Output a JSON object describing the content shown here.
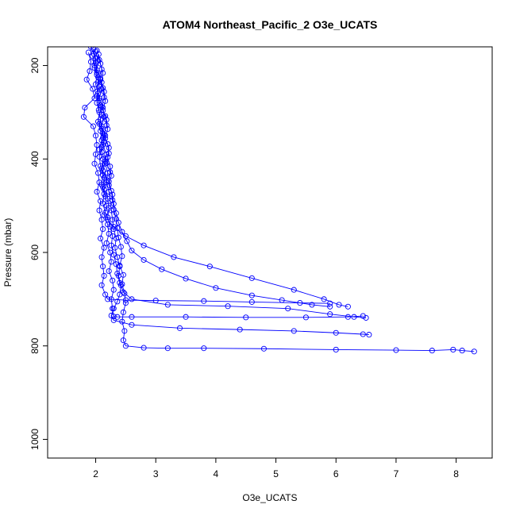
{
  "chart_data": {
    "type": "line",
    "title": "ATOM4 Northeast_Pacific_2 O3e_UCATS",
    "xlabel": "O3e_UCATS",
    "ylabel": "Pressure (mbar)",
    "xlim": [
      1.2,
      8.6
    ],
    "ylim": [
      160,
      1040
    ],
    "y_reversed": true,
    "x_ticks": [
      2,
      3,
      4,
      5,
      6,
      7,
      8
    ],
    "y_ticks": [
      200,
      400,
      600,
      800,
      1000
    ],
    "grid": false,
    "legend": "none",
    "series_color": "#0000ff",
    "series": [
      {
        "values": [
          [
            1.92,
            160
          ],
          [
            1.97,
            175
          ],
          [
            2.0,
            195
          ],
          [
            2.02,
            215
          ],
          [
            2.04,
            235
          ],
          [
            2.03,
            255
          ],
          [
            2.06,
            275
          ],
          [
            2.05,
            295
          ],
          [
            2.08,
            315
          ],
          [
            2.1,
            335
          ],
          [
            2.12,
            355
          ],
          [
            2.1,
            375
          ],
          [
            2.06,
            395
          ],
          [
            2.08,
            415
          ],
          [
            2.12,
            435
          ],
          [
            2.1,
            455
          ],
          [
            2.14,
            475
          ],
          [
            2.12,
            495
          ],
          [
            2.16,
            515
          ],
          [
            2.2,
            530
          ],
          [
            2.3,
            545
          ],
          [
            2.5,
            565
          ],
          [
            2.8,
            585
          ],
          [
            3.3,
            610
          ],
          [
            3.9,
            630
          ],
          [
            4.6,
            655
          ],
          [
            5.3,
            680
          ],
          [
            5.8,
            700
          ],
          [
            6.05,
            712
          ],
          [
            6.2,
            716
          ]
        ]
      },
      {
        "values": [
          [
            1.96,
            165
          ],
          [
            2.0,
            185
          ],
          [
            1.98,
            205
          ],
          [
            2.04,
            225
          ],
          [
            2.06,
            245
          ],
          [
            2.02,
            265
          ],
          [
            2.08,
            285
          ],
          [
            2.1,
            305
          ],
          [
            2.06,
            325
          ],
          [
            2.12,
            345
          ],
          [
            2.14,
            365
          ],
          [
            2.1,
            385
          ],
          [
            2.16,
            405
          ],
          [
            2.12,
            425
          ],
          [
            2.18,
            445
          ],
          [
            2.14,
            465
          ],
          [
            2.2,
            485
          ],
          [
            2.22,
            505
          ],
          [
            2.2,
            525
          ],
          [
            2.24,
            545
          ],
          [
            2.28,
            565
          ],
          [
            2.26,
            585
          ],
          [
            2.3,
            605
          ],
          [
            2.34,
            625
          ],
          [
            2.36,
            645
          ],
          [
            2.4,
            665
          ],
          [
            2.46,
            685
          ],
          [
            2.6,
            700
          ],
          [
            3.2,
            712
          ],
          [
            4.2,
            715
          ],
          [
            5.2,
            720
          ],
          [
            5.9,
            732
          ],
          [
            6.3,
            738
          ],
          [
            6.5,
            740
          ]
        ]
      },
      {
        "values": [
          [
            2.0,
            170
          ],
          [
            2.04,
            190
          ],
          [
            2.02,
            210
          ],
          [
            2.08,
            230
          ],
          [
            2.1,
            250
          ],
          [
            2.06,
            270
          ],
          [
            2.12,
            290
          ],
          [
            2.14,
            310
          ],
          [
            2.1,
            330
          ],
          [
            2.16,
            350
          ],
          [
            2.12,
            370
          ],
          [
            2.18,
            390
          ],
          [
            2.16,
            410
          ],
          [
            2.2,
            430
          ],
          [
            2.18,
            450
          ],
          [
            2.22,
            470
          ],
          [
            2.24,
            490
          ],
          [
            2.26,
            510
          ],
          [
            2.28,
            530
          ],
          [
            2.3,
            550
          ],
          [
            2.34,
            570
          ],
          [
            2.32,
            590
          ],
          [
            2.36,
            610
          ],
          [
            2.4,
            630
          ],
          [
            2.38,
            650
          ],
          [
            2.42,
            670
          ],
          [
            2.4,
            690
          ],
          [
            2.36,
            705
          ],
          [
            2.3,
            720
          ],
          [
            2.26,
            735
          ],
          [
            2.3,
            745
          ],
          [
            2.6,
            755
          ],
          [
            3.4,
            762
          ],
          [
            4.4,
            765
          ],
          [
            5.3,
            768
          ],
          [
            6.0,
            772
          ],
          [
            6.45,
            775
          ],
          [
            6.55,
            776
          ]
        ]
      },
      {
        "values": [
          [
            2.02,
            168
          ],
          [
            2.06,
            188
          ],
          [
            2.1,
            208
          ],
          [
            2.08,
            228
          ],
          [
            2.12,
            248
          ],
          [
            2.14,
            268
          ],
          [
            2.1,
            288
          ],
          [
            2.16,
            308
          ],
          [
            2.18,
            328
          ],
          [
            2.14,
            348
          ],
          [
            2.2,
            368
          ],
          [
            2.22,
            388
          ],
          [
            2.18,
            408
          ],
          [
            2.24,
            428
          ],
          [
            2.22,
            448
          ],
          [
            2.26,
            468
          ],
          [
            2.28,
            488
          ],
          [
            2.3,
            508
          ],
          [
            2.34,
            528
          ],
          [
            2.36,
            548
          ],
          [
            2.38,
            568
          ],
          [
            2.42,
            588
          ],
          [
            2.44,
            608
          ],
          [
            2.4,
            628
          ],
          [
            2.46,
            648
          ],
          [
            2.44,
            668
          ],
          [
            2.48,
            688
          ],
          [
            2.5,
            708
          ],
          [
            2.46,
            728
          ],
          [
            2.44,
            748
          ],
          [
            2.48,
            768
          ],
          [
            2.46,
            788
          ],
          [
            2.5,
            800
          ],
          [
            2.8,
            804
          ],
          [
            3.2,
            805
          ],
          [
            3.8,
            805
          ],
          [
            4.8,
            806
          ],
          [
            6.0,
            808
          ],
          [
            7.0,
            809
          ],
          [
            7.6,
            810
          ],
          [
            7.95,
            808
          ],
          [
            8.1,
            810
          ],
          [
            8.3,
            812
          ]
        ]
      },
      {
        "values": [
          [
            1.88,
            172
          ],
          [
            1.92,
            192
          ],
          [
            1.9,
            212
          ],
          [
            1.85,
            230
          ],
          [
            1.95,
            250
          ],
          [
            1.98,
            270
          ],
          [
            1.82,
            290
          ],
          [
            1.8,
            310
          ],
          [
            1.96,
            330
          ],
          [
            2.0,
            350
          ],
          [
            2.02,
            370
          ],
          [
            2.0,
            390
          ],
          [
            1.98,
            410
          ],
          [
            2.04,
            430
          ],
          [
            2.06,
            450
          ],
          [
            2.02,
            470
          ],
          [
            2.08,
            490
          ],
          [
            2.06,
            510
          ],
          [
            2.1,
            530
          ],
          [
            2.12,
            550
          ],
          [
            2.08,
            570
          ],
          [
            2.14,
            590
          ],
          [
            2.1,
            610
          ],
          [
            2.12,
            630
          ],
          [
            2.14,
            650
          ],
          [
            2.1,
            670
          ],
          [
            2.16,
            690
          ],
          [
            2.2,
            700
          ],
          [
            2.5,
            702
          ],
          [
            3.0,
            703
          ],
          [
            3.8,
            704
          ],
          [
            4.6,
            706
          ],
          [
            5.4,
            708
          ],
          [
            5.9,
            709
          ]
        ]
      },
      {
        "values": [
          [
            2.05,
            176
          ],
          [
            2.08,
            196
          ],
          [
            2.12,
            216
          ],
          [
            2.1,
            236
          ],
          [
            2.14,
            256
          ],
          [
            2.16,
            276
          ],
          [
            2.12,
            296
          ],
          [
            2.18,
            316
          ],
          [
            2.2,
            336
          ],
          [
            2.16,
            356
          ],
          [
            2.22,
            376
          ],
          [
            2.2,
            396
          ],
          [
            2.24,
            416
          ],
          [
            2.26,
            436
          ],
          [
            2.22,
            456
          ],
          [
            2.28,
            476
          ],
          [
            2.3,
            496
          ],
          [
            2.34,
            516
          ],
          [
            2.38,
            536
          ],
          [
            2.44,
            556
          ],
          [
            2.52,
            576
          ],
          [
            2.6,
            596
          ],
          [
            2.8,
            616
          ],
          [
            3.1,
            636
          ],
          [
            3.5,
            656
          ],
          [
            4.0,
            676
          ],
          [
            4.6,
            692
          ],
          [
            5.1,
            702
          ],
          [
            5.6,
            712
          ],
          [
            5.9,
            716
          ]
        ]
      },
      {
        "values": [
          [
            1.95,
            180
          ],
          [
            1.98,
            200
          ],
          [
            2.02,
            220
          ],
          [
            2.0,
            240
          ],
          [
            2.04,
            260
          ],
          [
            2.02,
            280
          ],
          [
            2.06,
            300
          ],
          [
            2.04,
            320
          ],
          [
            2.08,
            340
          ],
          [
            2.1,
            360
          ],
          [
            2.06,
            380
          ],
          [
            2.12,
            400
          ],
          [
            2.1,
            420
          ],
          [
            2.14,
            440
          ],
          [
            2.12,
            460
          ],
          [
            2.16,
            480
          ],
          [
            2.18,
            500
          ],
          [
            2.14,
            520
          ],
          [
            2.2,
            540
          ],
          [
            2.22,
            560
          ],
          [
            2.18,
            580
          ],
          [
            2.24,
            600
          ],
          [
            2.26,
            620
          ],
          [
            2.22,
            640
          ],
          [
            2.28,
            660
          ],
          [
            2.3,
            680
          ],
          [
            2.26,
            700
          ],
          [
            2.28,
            720
          ],
          [
            2.3,
            737
          ],
          [
            2.36,
            738
          ],
          [
            2.6,
            738
          ],
          [
            3.5,
            738
          ],
          [
            4.5,
            739
          ],
          [
            5.5,
            739
          ],
          [
            6.2,
            738
          ],
          [
            6.45,
            736
          ]
        ]
      }
    ]
  }
}
